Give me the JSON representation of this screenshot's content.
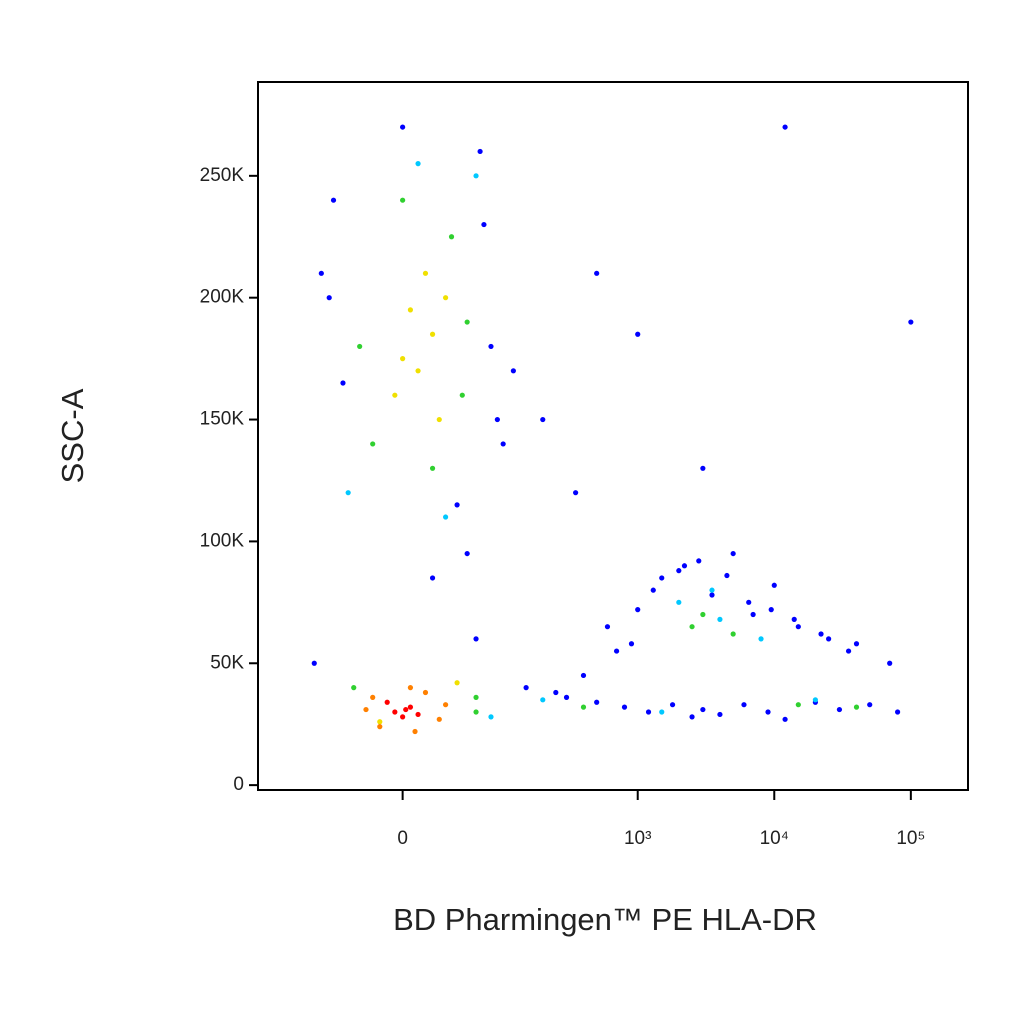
{
  "chart_data": {
    "type": "scatter",
    "x_label": "BD Pharmingen™ PE HLA-DR",
    "y_label": "SSC-A",
    "xscale": "biexponential",
    "xlim": [
      -216,
      262144
    ],
    "ylim": [
      -2000,
      288500
    ],
    "xticks": [
      {
        "value": 0,
        "label": "0"
      },
      {
        "value": 1000,
        "label": "10³"
      },
      {
        "value": 10000,
        "label": "10⁴"
      },
      {
        "value": 100000,
        "label": "10⁵"
      }
    ],
    "yticks": [
      0,
      {
        "value": 50000,
        "label": "50K"
      },
      {
        "value": 100000,
        "label": "100K"
      },
      {
        "value": 150000,
        "label": "150K"
      },
      {
        "value": 200000,
        "label": "200K"
      },
      {
        "value": 250000,
        "label": "250K"
      }
    ],
    "series": [
      {
        "color": "#0000ff",
        "x": [
          -60,
          -45,
          70,
          80,
          -55,
          90,
          0,
          40,
          -70,
          100,
          65,
          300,
          500,
          800,
          1200,
          1800,
          2500,
          3000,
          4000,
          6000,
          9000,
          12000,
          20000,
          30000,
          50000,
          80000,
          150,
          250,
          400,
          700,
          1000,
          1500,
          2200,
          3500,
          5000,
          7000,
          10000,
          15000,
          25000,
          40000,
          70000,
          600,
          900,
          1300,
          2000,
          2800,
          4500,
          6500,
          9500,
          14000,
          22000,
          35000,
          50,
          -80,
          120,
          200,
          350,
          3000,
          100000,
          12000,
          500,
          1000,
          60,
          20
        ],
        "values": [
          200000,
          165000,
          230000,
          180000,
          240000,
          150000,
          270000,
          115000,
          210000,
          140000,
          260000,
          36000,
          34000,
          32000,
          30000,
          33000,
          28000,
          31000,
          29000,
          33000,
          30000,
          27000,
          34000,
          31000,
          33000,
          30000,
          40000,
          38000,
          45000,
          55000,
          72000,
          85000,
          90000,
          78000,
          95000,
          70000,
          82000,
          65000,
          60000,
          58000,
          50000,
          65000,
          58000,
          80000,
          88000,
          92000,
          86000,
          75000,
          72000,
          68000,
          62000,
          55000,
          95000,
          50000,
          170000,
          150000,
          120000,
          130000,
          190000,
          270000,
          210000,
          185000,
          60000,
          85000
        ]
      },
      {
        "color": "#00c8ff",
        "x": [
          -40,
          60,
          10,
          30,
          2000,
          4000,
          8000,
          3500,
          20000,
          1500,
          200,
          80
        ],
        "values": [
          120000,
          250000,
          255000,
          110000,
          75000,
          68000,
          60000,
          80000,
          35000,
          30000,
          35000,
          28000
        ]
      },
      {
        "color": "#30d030",
        "x": [
          -20,
          35,
          50,
          0,
          45,
          -30,
          20,
          60,
          3000,
          2500,
          5000,
          15000,
          40000,
          60,
          400,
          -35
        ],
        "values": [
          140000,
          225000,
          190000,
          240000,
          160000,
          180000,
          130000,
          30000,
          70000,
          65000,
          62000,
          33000,
          32000,
          36000,
          32000,
          40000
        ]
      },
      {
        "color": "#f0e000",
        "x": [
          10,
          20,
          -5,
          30,
          0,
          15,
          25,
          5,
          40,
          -15
        ],
        "values": [
          170000,
          185000,
          160000,
          200000,
          175000,
          210000,
          150000,
          195000,
          42000,
          26000
        ]
      },
      {
        "color": "#ff8000",
        "x": [
          -20,
          15,
          25,
          -15,
          5,
          30,
          -25,
          8
        ],
        "values": [
          36000,
          38000,
          27000,
          24000,
          40000,
          33000,
          31000,
          22000
        ]
      },
      {
        "color": "#ff0000",
        "x": [
          -5,
          5,
          0,
          -10,
          10,
          2
        ],
        "values": [
          30000,
          32000,
          28000,
          34000,
          29000,
          31000
        ]
      }
    ]
  }
}
